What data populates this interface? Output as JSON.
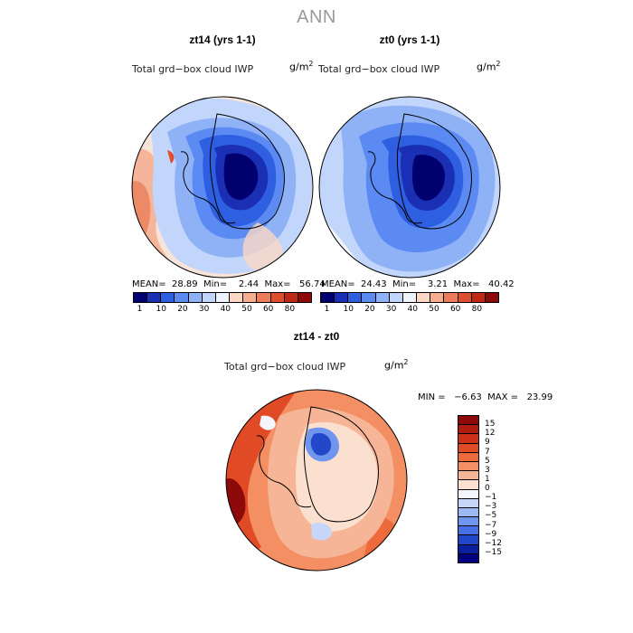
{
  "title": "ANN",
  "panels": [
    {
      "title": "zt14 (yrs 1-1)",
      "variable": "Total grd−box cloud IWP",
      "units": "g/m",
      "units_exp": "2",
      "stats": "MEAN=  28.89  Min=    2.44  Max=   56.74"
    },
    {
      "title": "zt0 (yrs 1-1)",
      "variable": "Total grd−box cloud IWP",
      "units": "g/m",
      "units_exp": "2",
      "stats": "MEAN=  24.43  Min=    3.21  Max=   40.42"
    }
  ],
  "shared_colorbar": {
    "labels": [
      "1",
      "10",
      "20",
      "30",
      "40",
      "50",
      "60",
      "80"
    ],
    "colors": [
      "#00006e",
      "#1a2fb4",
      "#2e5fe0",
      "#5b8af2",
      "#8fb2f7",
      "#c2d6fb",
      "#eef2fb",
      "#fbd7c4",
      "#f6ad8f",
      "#ec7c5a",
      "#de4f30",
      "#c02816",
      "#8c0a0a"
    ]
  },
  "difference": {
    "title": "zt14 - zt0",
    "variable": "Total grd−box cloud IWP",
    "units": "g/m",
    "units_exp": "2",
    "stats": "MIN =   −6.63  MAX =   23.99",
    "colorbar": {
      "labels": [
        "15",
        "12",
        "9",
        "7",
        "5",
        "3",
        "1",
        "0",
        "−1",
        "−3",
        "−5",
        "−7",
        "−9",
        "−12",
        "−15"
      ],
      "colors": [
        "#8c0a0a",
        "#b01c10",
        "#cc3017",
        "#e04a25",
        "#ec6a3c",
        "#f48e63",
        "#f7b597",
        "#fbe0d0",
        "#f4f6fb",
        "#c6d6f8",
        "#9bbaf4",
        "#6f95ee",
        "#4770e4",
        "#2247c8",
        "#0c1fa0",
        "#000080"
      ]
    }
  }
}
